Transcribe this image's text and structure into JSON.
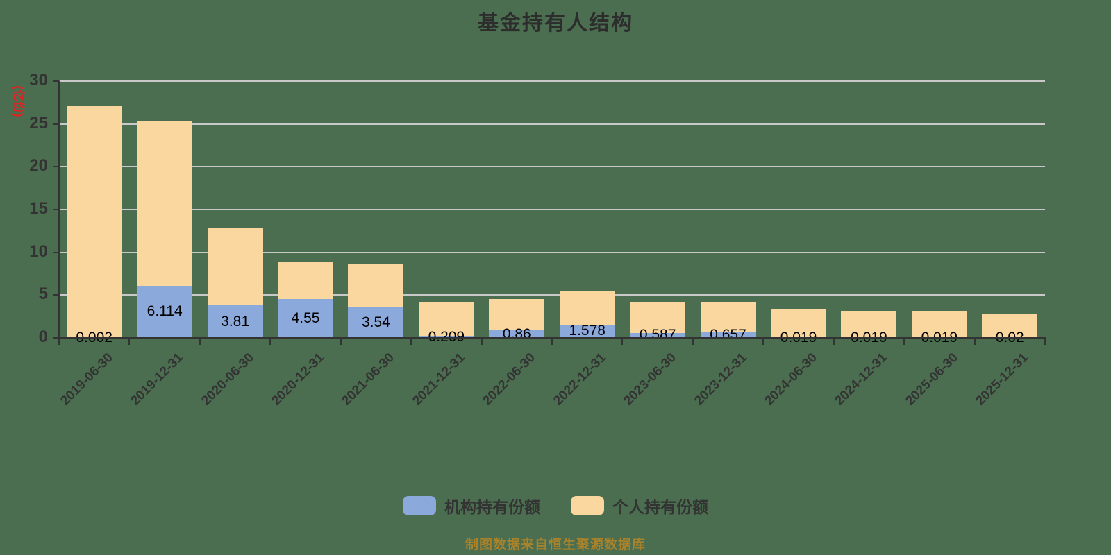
{
  "title": "基金持有人结构",
  "y_axis": {
    "unit": "(亿份)",
    "ticks": [
      0,
      5,
      10,
      15,
      20,
      25,
      30
    ],
    "max": 30
  },
  "legend": {
    "institutional": "机构持有份额",
    "personal": "个人持有份额"
  },
  "attribution": "制图数据来自恒生聚源数据库",
  "colors": {
    "institutional": "#8CA9DB",
    "personal": "#FBD7A0",
    "background": "#4A6E4F",
    "grid": "#C9C9C9",
    "axis": "#333333",
    "tick_label": "#333333",
    "value_label": "#000000",
    "unit_label": "#E02222",
    "attribution": "#A8832B"
  },
  "chart_data": {
    "type": "bar",
    "stacked": true,
    "title": "基金持有人结构",
    "ylabel": "(亿份)",
    "ylim": [
      0,
      30
    ],
    "grid": true,
    "legend_position": "bottom",
    "categories": [
      "2019-06-30",
      "2019-12-31",
      "2020-06-30",
      "2020-12-31",
      "2021-06-30",
      "2021-12-31",
      "2022-06-30",
      "2022-12-31",
      "2023-06-30",
      "2023-12-31",
      "2024-06-30",
      "2024-12-31",
      "2025-06-30",
      "2025-12-31"
    ],
    "series": [
      {
        "name": "机构持有份额",
        "color": "#8CA9DB",
        "values": [
          0.002,
          6.114,
          3.81,
          4.55,
          3.54,
          0.209,
          0.86,
          1.578,
          0.587,
          0.657,
          0.019,
          0.019,
          0.019,
          0.02
        ],
        "labels": [
          "0.002",
          "6.114",
          "3.81",
          "4.55",
          "3.54",
          "0.209",
          "0.86",
          "1.578",
          "0.587",
          "0.657",
          "0.019",
          "0.019",
          "0.019",
          "0.02"
        ]
      },
      {
        "name": "个人持有份额",
        "color": "#FBD7A0",
        "values": [
          27.1,
          19.19,
          9.09,
          4.25,
          5.06,
          3.94,
          3.69,
          3.82,
          3.61,
          3.49,
          3.28,
          3.06,
          3.13,
          2.83
        ]
      }
    ]
  }
}
